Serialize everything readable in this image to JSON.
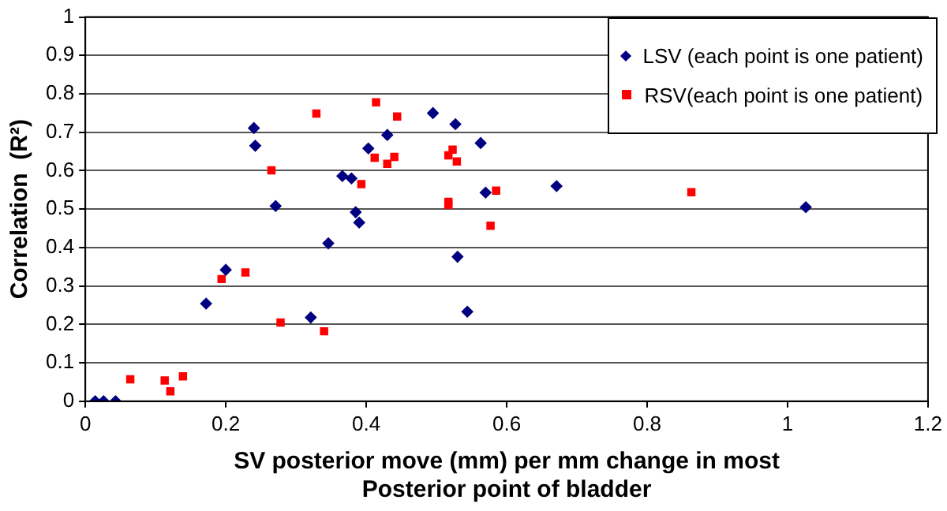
{
  "chart_data": {
    "type": "scatter",
    "xlabel": "SV posterior move (mm) per mm change in most Posterior point of bladder",
    "ylabel": "Correlation  (R²)",
    "xlim": [
      0,
      1.2
    ],
    "xticks": [
      0,
      0.2,
      0.4,
      0.6,
      0.8,
      1,
      1.2
    ],
    "ylim": [
      0,
      1
    ],
    "yticks": [
      0,
      0.1,
      0.2,
      0.3,
      0.4,
      0.5,
      0.6,
      0.7,
      0.8,
      0.9,
      1
    ],
    "grid": "y",
    "legend": "top right",
    "series": [
      {
        "name": "LSV (each point is one patient)",
        "color": "#000080",
        "marker": "diamond",
        "x": [
          0.014,
          0.026,
          0.043,
          0.172,
          0.2,
          0.24,
          0.242,
          0.271,
          0.321,
          0.346,
          0.366,
          0.379,
          0.385,
          0.39,
          0.403,
          0.43,
          0.495,
          0.527,
          0.53,
          0.544,
          0.563,
          0.57,
          0.671,
          1.026
        ],
        "values": [
          0,
          0,
          0,
          0.254,
          0.342,
          0.711,
          0.665,
          0.508,
          0.218,
          0.411,
          0.586,
          0.58,
          0.492,
          0.465,
          0.658,
          0.693,
          0.75,
          0.721,
          0.376,
          0.233,
          0.672,
          0.543,
          0.56,
          0.505
        ]
      },
      {
        "name": "RSV(each point is one patient)",
        "color": "#ff0000",
        "marker": "square",
        "x": [
          0.064,
          0.113,
          0.121,
          0.139,
          0.194,
          0.228,
          0.265,
          0.278,
          0.329,
          0.34,
          0.393,
          0.414,
          0.412,
          0.43,
          0.44,
          0.444,
          0.517,
          0.523,
          0.529,
          0.517,
          0.517,
          0.577,
          0.585,
          0.863
        ],
        "values": [
          0.057,
          0.054,
          0.026,
          0.065,
          0.318,
          0.335,
          0.601,
          0.205,
          0.749,
          0.182,
          0.565,
          0.778,
          0.634,
          0.618,
          0.636,
          0.741,
          0.64,
          0.655,
          0.624,
          0.519,
          0.511,
          0.457,
          0.548,
          0.544
        ]
      }
    ]
  }
}
